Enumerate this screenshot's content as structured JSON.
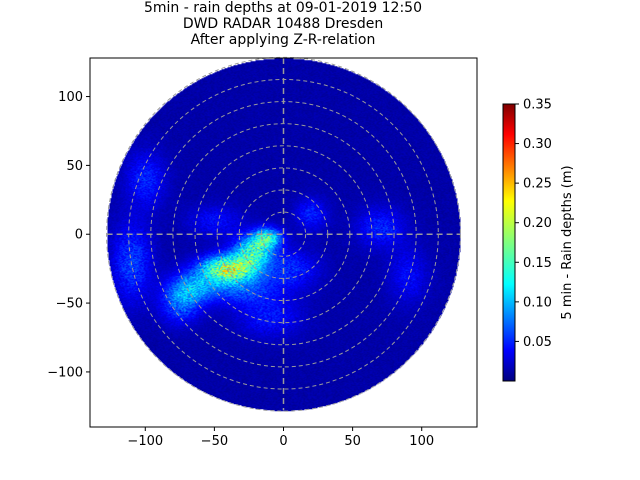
{
  "chart_data": {
    "type": "heatmap",
    "title_lines": [
      "5min - rain depths at 09-01-2019 12:50",
      "DWD RADAR 10488 Dresden",
      "After applying Z-R-relation"
    ],
    "xlabel": "",
    "ylabel": "",
    "xlim": [
      -140,
      140
    ],
    "ylim": [
      -140,
      128
    ],
    "xticks": [
      -100,
      -50,
      0,
      50,
      100
    ],
    "yticks": [
      -100,
      -50,
      0,
      50,
      100
    ],
    "xtick_labels": [
      "−100",
      "−50",
      "0",
      "50",
      "100"
    ],
    "ytick_labels": [
      "−100",
      "−50",
      "0",
      "50",
      "100"
    ],
    "radar_max_range": 128,
    "range_rings": [
      16,
      32,
      48,
      64,
      80,
      96,
      112,
      128
    ],
    "colorbar": {
      "label": "5 min - Rain depths (m)",
      "colormap": "jet",
      "range": [
        0.0,
        0.35
      ],
      "ticks": [
        0.05,
        0.1,
        0.15,
        0.2,
        0.25,
        0.3,
        0.35
      ],
      "tick_labels": [
        "0.05",
        "0.10",
        "0.15",
        "0.20",
        "0.25",
        "0.30",
        "0.35"
      ]
    },
    "precip_cells": [
      {
        "x": -40,
        "y": -25,
        "sx": 14,
        "sy": 7,
        "amp": 0.17
      },
      {
        "x": -22,
        "y": -12,
        "sx": 10,
        "sy": 8,
        "amp": 0.12
      },
      {
        "x": -12,
        "y": -2,
        "sx": 7,
        "sy": 5,
        "amp": 0.11
      },
      {
        "x": -65,
        "y": -38,
        "sx": 12,
        "sy": 8,
        "amp": 0.07
      },
      {
        "x": -75,
        "y": -50,
        "sx": 10,
        "sy": 10,
        "amp": 0.06
      },
      {
        "x": -110,
        "y": -20,
        "sx": 10,
        "sy": 20,
        "amp": 0.05
      },
      {
        "x": -30,
        "y": -40,
        "sx": 18,
        "sy": 8,
        "amp": 0.05
      },
      {
        "x": 5,
        "y": -25,
        "sx": 14,
        "sy": 10,
        "amp": 0.04
      },
      {
        "x": 70,
        "y": 5,
        "sx": 12,
        "sy": 10,
        "amp": 0.04
      },
      {
        "x": -100,
        "y": 40,
        "sx": 10,
        "sy": 14,
        "amp": 0.04
      },
      {
        "x": 20,
        "y": 15,
        "sx": 8,
        "sy": 8,
        "amp": 0.04
      },
      {
        "x": -50,
        "y": 10,
        "sx": 14,
        "sy": 8,
        "amp": 0.03
      },
      {
        "x": -10,
        "y": -60,
        "sx": 16,
        "sy": 10,
        "amp": 0.035
      },
      {
        "x": 90,
        "y": -30,
        "sx": 10,
        "sy": 14,
        "amp": 0.03
      }
    ]
  }
}
